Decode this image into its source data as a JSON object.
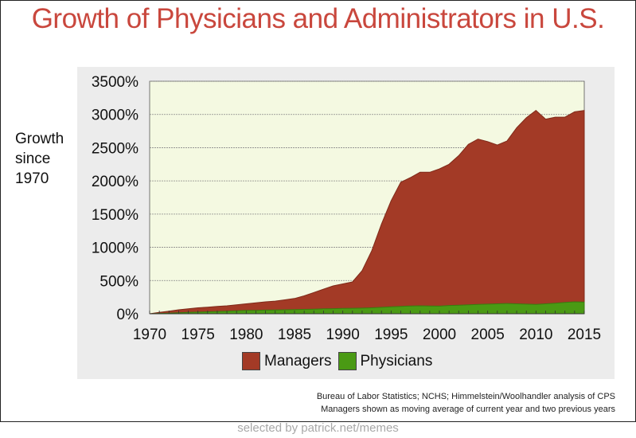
{
  "title": "Growth of Physicians and Administrators in U.S.",
  "ylabel_lines": [
    "Growth",
    "since",
    "1970"
  ],
  "legend": [
    {
      "label": "Managers",
      "color": "#a33a26"
    },
    {
      "label": "Physicians",
      "color": "#4a9a14"
    }
  ],
  "source_lines": [
    "Bureau of Labor Statistics; NCHS; Himmelstein/Woolhandler analysis of CPS",
    "Managers shown as moving average of current year and two previous years"
  ],
  "footer": "selected by patrick.net/memes",
  "chart_data": {
    "type": "area",
    "title": "Growth of Physicians and Administrators in U.S.",
    "xlabel": "",
    "ylabel": "Growth since 1970",
    "x": [
      1970,
      1971,
      1972,
      1973,
      1974,
      1975,
      1976,
      1977,
      1978,
      1979,
      1980,
      1981,
      1982,
      1983,
      1984,
      1985,
      1986,
      1987,
      1988,
      1989,
      1990,
      1991,
      1992,
      1993,
      1994,
      1995,
      1996,
      1997,
      1998,
      1999,
      2000,
      2001,
      2002,
      2003,
      2004,
      2005,
      2006,
      2007,
      2008,
      2009,
      2010,
      2011,
      2012,
      2013,
      2014,
      2015
    ],
    "x_ticks": [
      1970,
      1975,
      1980,
      1985,
      1990,
      1995,
      2000,
      2005,
      2010,
      2015
    ],
    "y_ticks": [
      0,
      500,
      1000,
      1500,
      2000,
      2500,
      3000,
      3500
    ],
    "y_tick_labels": [
      "0%",
      "500%",
      "1000%",
      "1500%",
      "2000%",
      "2500%",
      "3000%",
      "3500%"
    ],
    "ylim": [
      0,
      3500
    ],
    "xlim": [
      1970,
      2015
    ],
    "grid": "horizontal",
    "series": [
      {
        "name": "Managers",
        "color": "#a33a26",
        "values": [
          0,
          20,
          40,
          60,
          75,
          90,
          100,
          110,
          120,
          135,
          150,
          165,
          180,
          190,
          210,
          230,
          270,
          320,
          370,
          420,
          450,
          480,
          650,
          950,
          1350,
          1700,
          1980,
          2050,
          2130,
          2130,
          2180,
          2250,
          2380,
          2550,
          2630,
          2590,
          2540,
          2600,
          2800,
          2950,
          3060,
          2930,
          2960,
          2960,
          3040,
          3060
        ]
      },
      {
        "name": "Physicians",
        "color": "#4a9a14",
        "values": [
          0,
          5,
          10,
          15,
          20,
          25,
          30,
          35,
          40,
          45,
          50,
          52,
          55,
          58,
          60,
          63,
          66,
          70,
          74,
          77,
          80,
          83,
          85,
          90,
          97,
          105,
          112,
          118,
          120,
          118,
          115,
          125,
          130,
          135,
          140,
          145,
          150,
          155,
          150,
          145,
          140,
          150,
          160,
          170,
          180,
          175
        ]
      }
    ]
  }
}
